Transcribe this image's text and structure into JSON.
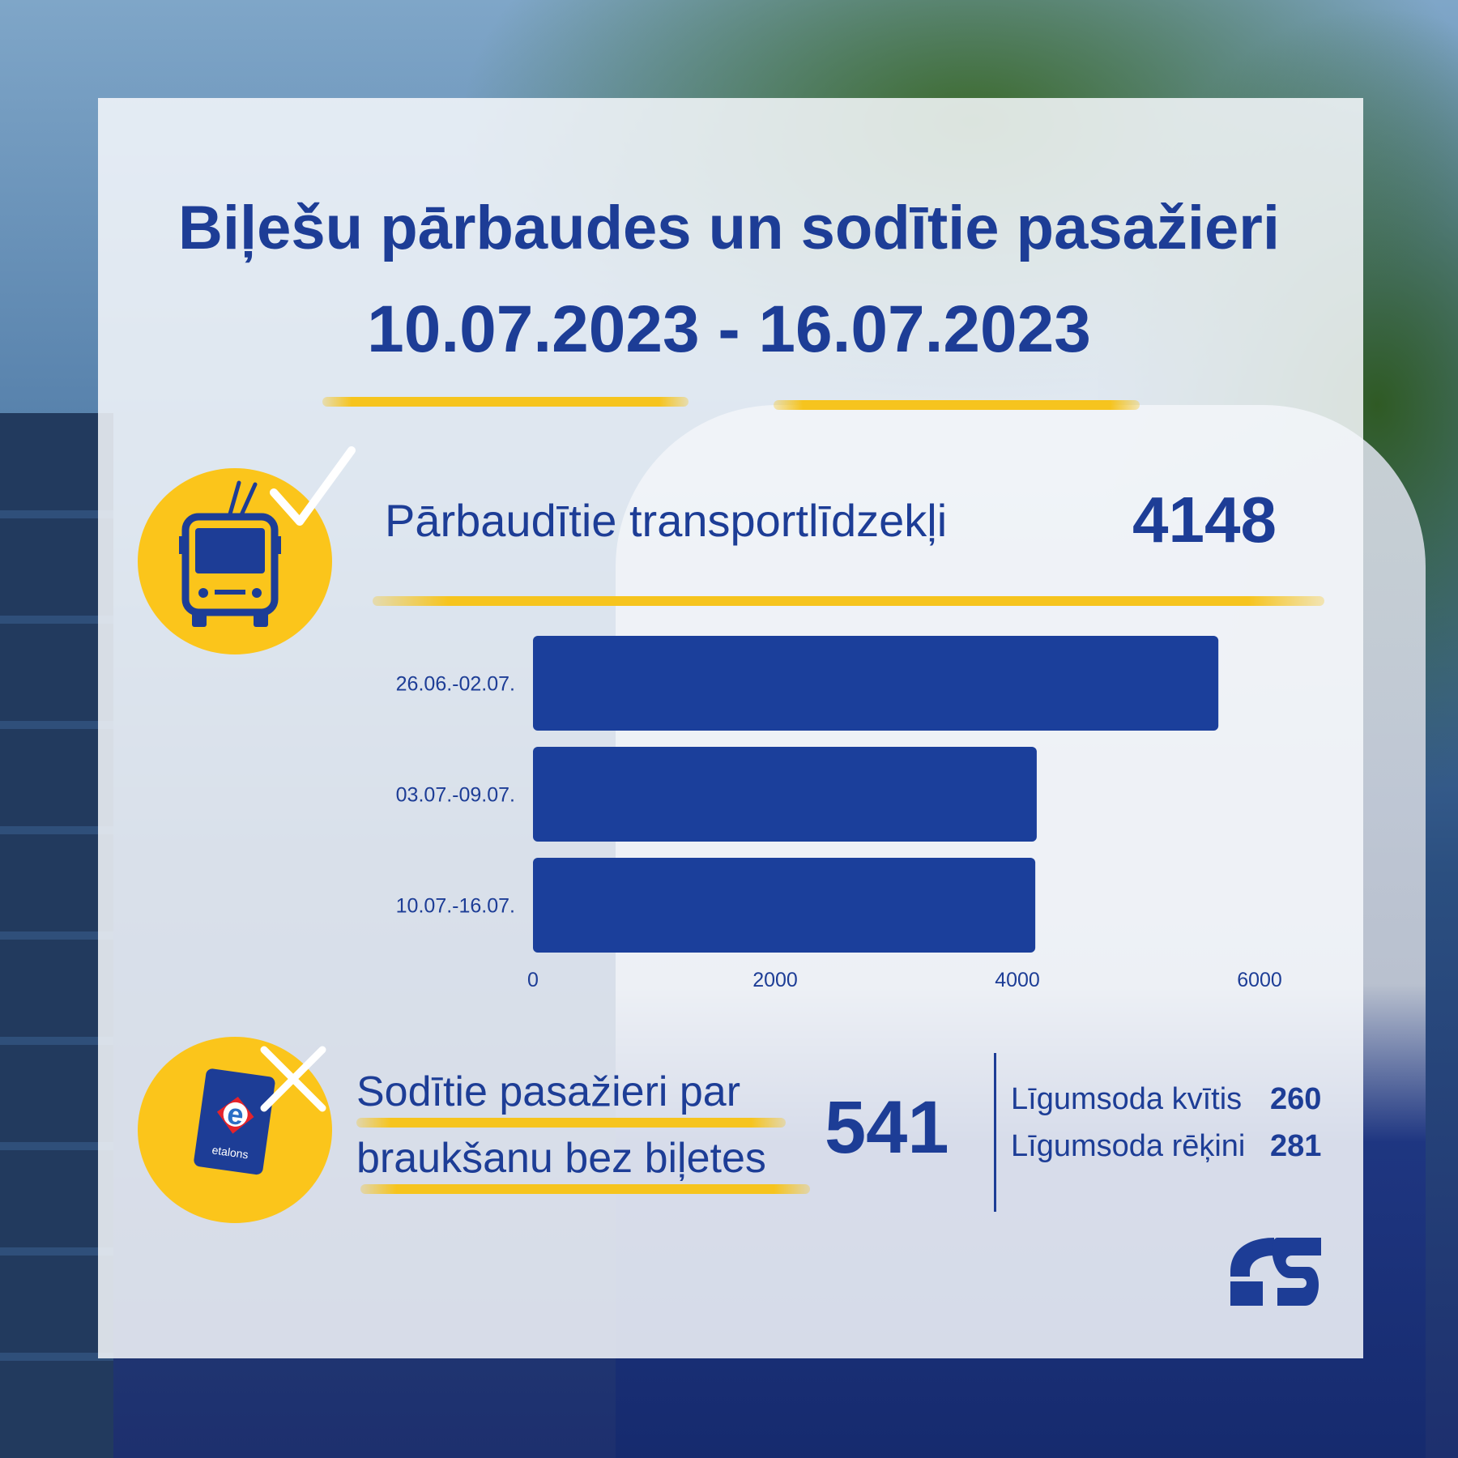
{
  "title": "Biļešu pārbaudes un sodītie pasažieri",
  "period": "10.07.2023 - 16.07.2023",
  "checked": {
    "label": "Pārbaudītie transportlīdzekļi",
    "value": "4148"
  },
  "fined": {
    "label_line1": "Sodītie pasažieri par",
    "label_line2": "braukšanu bez biļetes",
    "total": "541",
    "receipts_label": "Līgumsoda kvītis",
    "receipts_value": "260",
    "invoices_label": "Līgumsoda rēķini",
    "invoices_value": "281"
  },
  "etalons_text": "etalons",
  "colors": {
    "primary": "#1d3d96",
    "accent": "#fbc51b",
    "bar": "#1b3f9b"
  },
  "chart_data": {
    "type": "bar",
    "orientation": "horizontal",
    "categories": [
      "26.06.-02.07.",
      "03.07.-09.07.",
      "10.07.-16.07."
    ],
    "values": [
      5660,
      4160,
      4148
    ],
    "xlim": [
      0,
      6000
    ],
    "xticks": [
      "0",
      "2000",
      "4000",
      "6000"
    ],
    "grid": false,
    "legend": "none"
  }
}
